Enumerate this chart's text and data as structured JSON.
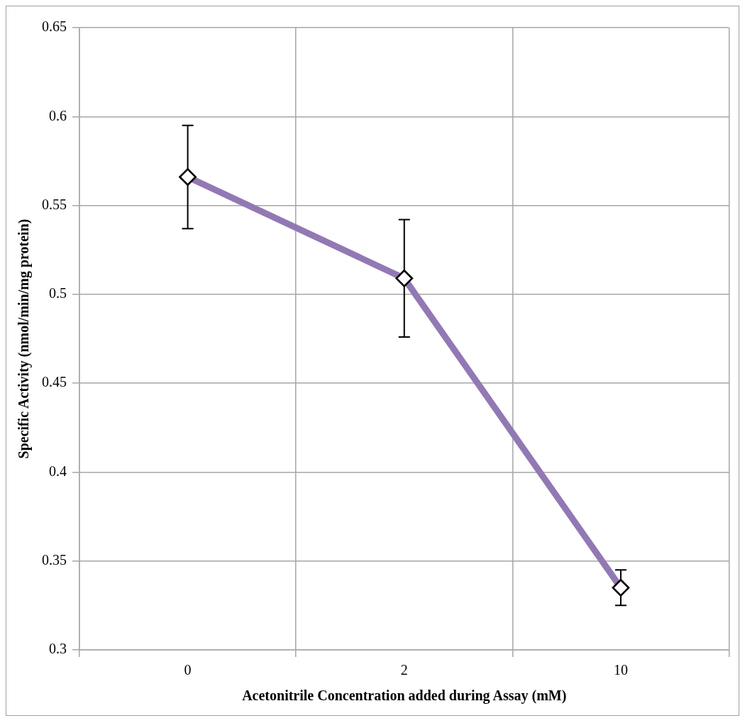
{
  "chart_data": {
    "type": "line",
    "xlabel": "Acetonitrile Concentration added during Assay (mM)",
    "ylabel": "Specific Activity (nmol/min/mg protein)",
    "categories": [
      "0",
      "2",
      "10"
    ],
    "series": [
      {
        "color": "#9279b3",
        "values": [
          0.566,
          0.509,
          0.335
        ],
        "errors": [
          0.029,
          0.033,
          0.01
        ]
      }
    ],
    "ylim": [
      0.3,
      0.65
    ],
    "yticks": [
      0.3,
      0.35,
      0.4,
      0.45,
      0.5,
      0.55,
      0.6,
      0.65
    ],
    "grid": true,
    "legend": false,
    "marker": "diamond",
    "line_style": "solid"
  }
}
